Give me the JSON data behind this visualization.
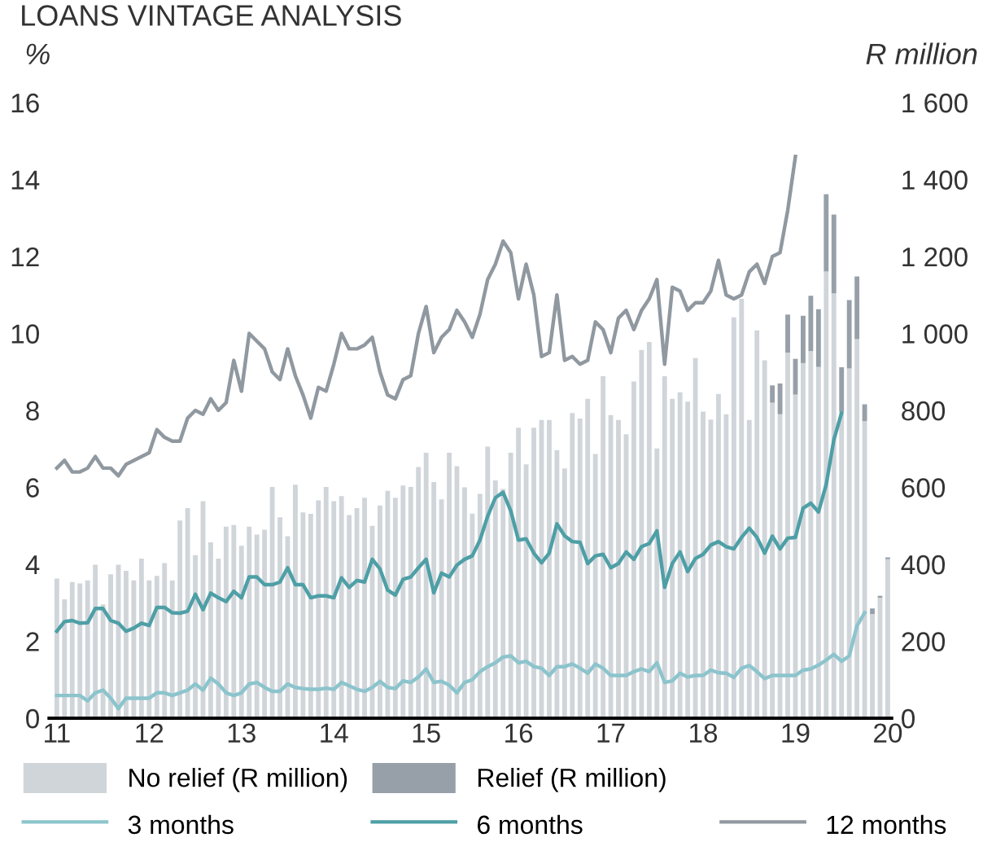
{
  "chart_data": {
    "type": "bar",
    "title": "LOANS VINTAGE ANALYSIS",
    "ylabel": "%",
    "y2label": "R million",
    "categories": [
      "11",
      null,
      null,
      null,
      null,
      null,
      null,
      null,
      null,
      null,
      null,
      null,
      "12",
      null,
      null,
      null,
      null,
      null,
      null,
      null,
      null,
      null,
      null,
      null,
      "13",
      null,
      null,
      null,
      null,
      null,
      null,
      null,
      null,
      null,
      null,
      null,
      "14",
      null,
      null,
      null,
      null,
      null,
      null,
      null,
      null,
      null,
      null,
      null,
      "15",
      null,
      null,
      null,
      null,
      null,
      null,
      null,
      null,
      null,
      null,
      null,
      "16",
      null,
      null,
      null,
      null,
      null,
      null,
      null,
      null,
      null,
      null,
      null,
      "17",
      null,
      null,
      null,
      null,
      null,
      null,
      null,
      null,
      null,
      null,
      null,
      "18",
      null,
      null,
      null,
      null,
      null,
      null,
      null,
      null,
      null,
      null,
      null,
      "19",
      null,
      null,
      null,
      null,
      null,
      null,
      null,
      null,
      null,
      null,
      null,
      "20"
    ],
    "stacked": true,
    "series": [
      {
        "name": "No relief (R million)",
        "axis": "y2",
        "color": "#d0d5da",
        "values": [
          363,
          309,
          354,
          350,
          358,
          399,
          296,
          374,
          399,
          383,
          358,
          415,
          358,
          370,
          403,
          358,
          514,
          546,
          424,
          564,
          457,
          415,
          498,
          502,
          448,
          498,
          477,
          490,
          601,
          522,
          473,
          607,
          535,
          531,
          566,
          601,
          564,
          577,
          528,
          546,
          573,
          500,
          553,
          591,
          573,
          605,
          601,
          653,
          690,
          614,
          569,
          690,
          655,
          600,
          532,
          583,
          706,
          618,
          596,
          690,
          755,
          660,
          755,
          775,
          775,
          697,
          649,
          793,
          779,
          830,
          687,
          889,
          788,
          775,
          738,
          875,
          957,
          978,
          701,
          889,
          830,
          847,
          823,
          936,
          797,
          776,
          843,
          790,
          1042,
          1090,
          775,
          1008,
          930,
          820,
          790,
          950,
          841,
          923,
          954,
          913,
          1161,
          1104,
          797,
          909,
          985,
          772,
          271,
          313,
          413
        ]
      },
      {
        "name": "Relief (R million)",
        "axis": "y2",
        "color": "#97a0a8",
        "values": [
          null,
          null,
          null,
          null,
          null,
          null,
          null,
          null,
          null,
          null,
          null,
          null,
          null,
          null,
          null,
          null,
          null,
          null,
          null,
          null,
          null,
          null,
          null,
          null,
          null,
          null,
          null,
          null,
          null,
          null,
          null,
          null,
          null,
          null,
          null,
          null,
          null,
          null,
          null,
          null,
          null,
          null,
          null,
          null,
          null,
          null,
          null,
          null,
          null,
          null,
          null,
          null,
          null,
          null,
          null,
          null,
          null,
          null,
          null,
          null,
          null,
          null,
          null,
          null,
          null,
          null,
          null,
          null,
          null,
          null,
          null,
          null,
          null,
          null,
          null,
          null,
          null,
          null,
          null,
          null,
          null,
          null,
          null,
          null,
          null,
          null,
          null,
          null,
          null,
          null,
          null,
          null,
          null,
          45,
          80,
          99,
          93,
          123,
          144,
          150,
          201,
          205,
          115,
          178,
          163,
          44,
          14,
          5,
          5
        ]
      },
      {
        "name": "3 months",
        "type": "line",
        "axis": "y",
        "color": "#8cc4cc",
        "values": [
          0.59,
          0.59,
          0.59,
          0.59,
          0.45,
          0.66,
          0.73,
          0.52,
          0.25,
          0.52,
          0.52,
          0.52,
          0.52,
          0.66,
          0.66,
          0.59,
          0.66,
          0.73,
          0.89,
          0.73,
          1.04,
          0.89,
          0.66,
          0.59,
          0.66,
          0.89,
          0.93,
          0.8,
          0.7,
          0.7,
          0.89,
          0.8,
          0.77,
          0.75,
          0.75,
          0.78,
          0.75,
          0.93,
          0.84,
          0.75,
          0.7,
          0.8,
          0.96,
          0.8,
          0.77,
          0.97,
          0.93,
          1.07,
          1.28,
          0.93,
          0.96,
          0.86,
          0.66,
          0.93,
          1.0,
          1.21,
          1.34,
          1.44,
          1.59,
          1.62,
          1.44,
          1.48,
          1.34,
          1.3,
          1.11,
          1.34,
          1.34,
          1.41,
          1.3,
          1.17,
          1.41,
          1.3,
          1.11,
          1.11,
          1.11,
          1.21,
          1.28,
          1.21,
          1.44,
          0.93,
          0.97,
          1.17,
          1.07,
          1.11,
          1.11,
          1.25,
          1.18,
          1.17,
          1.06,
          1.3,
          1.37,
          1.21,
          1.03,
          1.11,
          1.11,
          1.11,
          1.11,
          1.25,
          1.28,
          1.38,
          1.51,
          1.66,
          1.48,
          1.62,
          2.4,
          2.74,
          null,
          null,
          null
        ]
      },
      {
        "name": "6 months",
        "type": "line",
        "axis": "y",
        "color": "#4e9fa6",
        "values": [
          2.26,
          2.51,
          2.54,
          2.47,
          2.48,
          2.85,
          2.85,
          2.54,
          2.47,
          2.26,
          2.34,
          2.47,
          2.41,
          2.88,
          2.88,
          2.74,
          2.73,
          2.78,
          3.22,
          2.82,
          3.25,
          3.13,
          3.03,
          3.3,
          3.13,
          3.67,
          3.67,
          3.47,
          3.47,
          3.54,
          3.91,
          3.47,
          3.47,
          3.13,
          3.18,
          3.18,
          3.13,
          3.65,
          3.4,
          3.58,
          3.54,
          4.13,
          3.88,
          3.33,
          3.2,
          3.61,
          3.67,
          3.91,
          4.13,
          3.26,
          3.77,
          3.67,
          3.98,
          4.13,
          4.22,
          4.63,
          5.25,
          5.73,
          5.87,
          5.39,
          4.63,
          4.66,
          4.29,
          4.04,
          4.29,
          5.05,
          4.74,
          4.59,
          4.57,
          4.02,
          4.22,
          4.26,
          3.91,
          4.02,
          4.32,
          4.13,
          4.46,
          4.54,
          4.87,
          3.4,
          4.02,
          4.32,
          3.81,
          4.15,
          4.26,
          4.5,
          4.59,
          4.46,
          4.4,
          4.7,
          4.94,
          4.7,
          4.29,
          4.73,
          4.4,
          4.68,
          4.7,
          5.46,
          5.59,
          5.36,
          6.07,
          7.24,
          7.93,
          null,
          null,
          null,
          null,
          null,
          null
        ]
      },
      {
        "name": "12 months",
        "type": "line",
        "axis": "y",
        "color": "#9098a0",
        "values": [
          6.5,
          6.7,
          6.4,
          6.4,
          6.5,
          6.8,
          6.5,
          6.5,
          6.3,
          6.6,
          6.7,
          6.8,
          6.9,
          7.5,
          7.3,
          7.2,
          7.2,
          7.8,
          8.0,
          7.9,
          8.3,
          8.0,
          8.2,
          9.3,
          8.5,
          10.0,
          9.8,
          9.6,
          9.0,
          8.8,
          9.6,
          8.9,
          8.4,
          7.8,
          8.6,
          8.5,
          9.2,
          10.0,
          9.6,
          9.6,
          9.7,
          9.9,
          9.0,
          8.4,
          8.3,
          8.8,
          8.9,
          10.0,
          10.7,
          9.5,
          9.9,
          10.1,
          10.6,
          10.3,
          9.9,
          10.5,
          11.4,
          11.8,
          12.4,
          12.1,
          10.9,
          11.8,
          11.0,
          9.4,
          9.5,
          11.0,
          9.3,
          9.4,
          9.2,
          9.3,
          10.3,
          10.1,
          9.5,
          10.4,
          10.6,
          10.1,
          10.6,
          10.9,
          11.4,
          9.2,
          11.2,
          11.1,
          10.6,
          10.8,
          10.8,
          11.1,
          11.9,
          11.0,
          10.9,
          11.0,
          11.6,
          11.8,
          11.3,
          12.0,
          12.1,
          13.2,
          14.6,
          null,
          null,
          null,
          null,
          null,
          null,
          null,
          null,
          null,
          null,
          null,
          null
        ]
      }
    ],
    "ylim": [
      0,
      16
    ],
    "yticks": [
      0,
      2,
      4,
      6,
      8,
      10,
      12,
      14,
      16
    ],
    "y2lim": [
      0,
      1600
    ],
    "y2ticks": [
      0,
      200,
      400,
      600,
      800,
      {
        "value": 1000,
        "label": "1 000"
      },
      {
        "value": 1200,
        "label": "1 200"
      },
      {
        "value": 1400,
        "label": "1 400"
      },
      {
        "value": 1600,
        "label": "1 600"
      }
    ],
    "legend": "bottom",
    "grid": false
  }
}
